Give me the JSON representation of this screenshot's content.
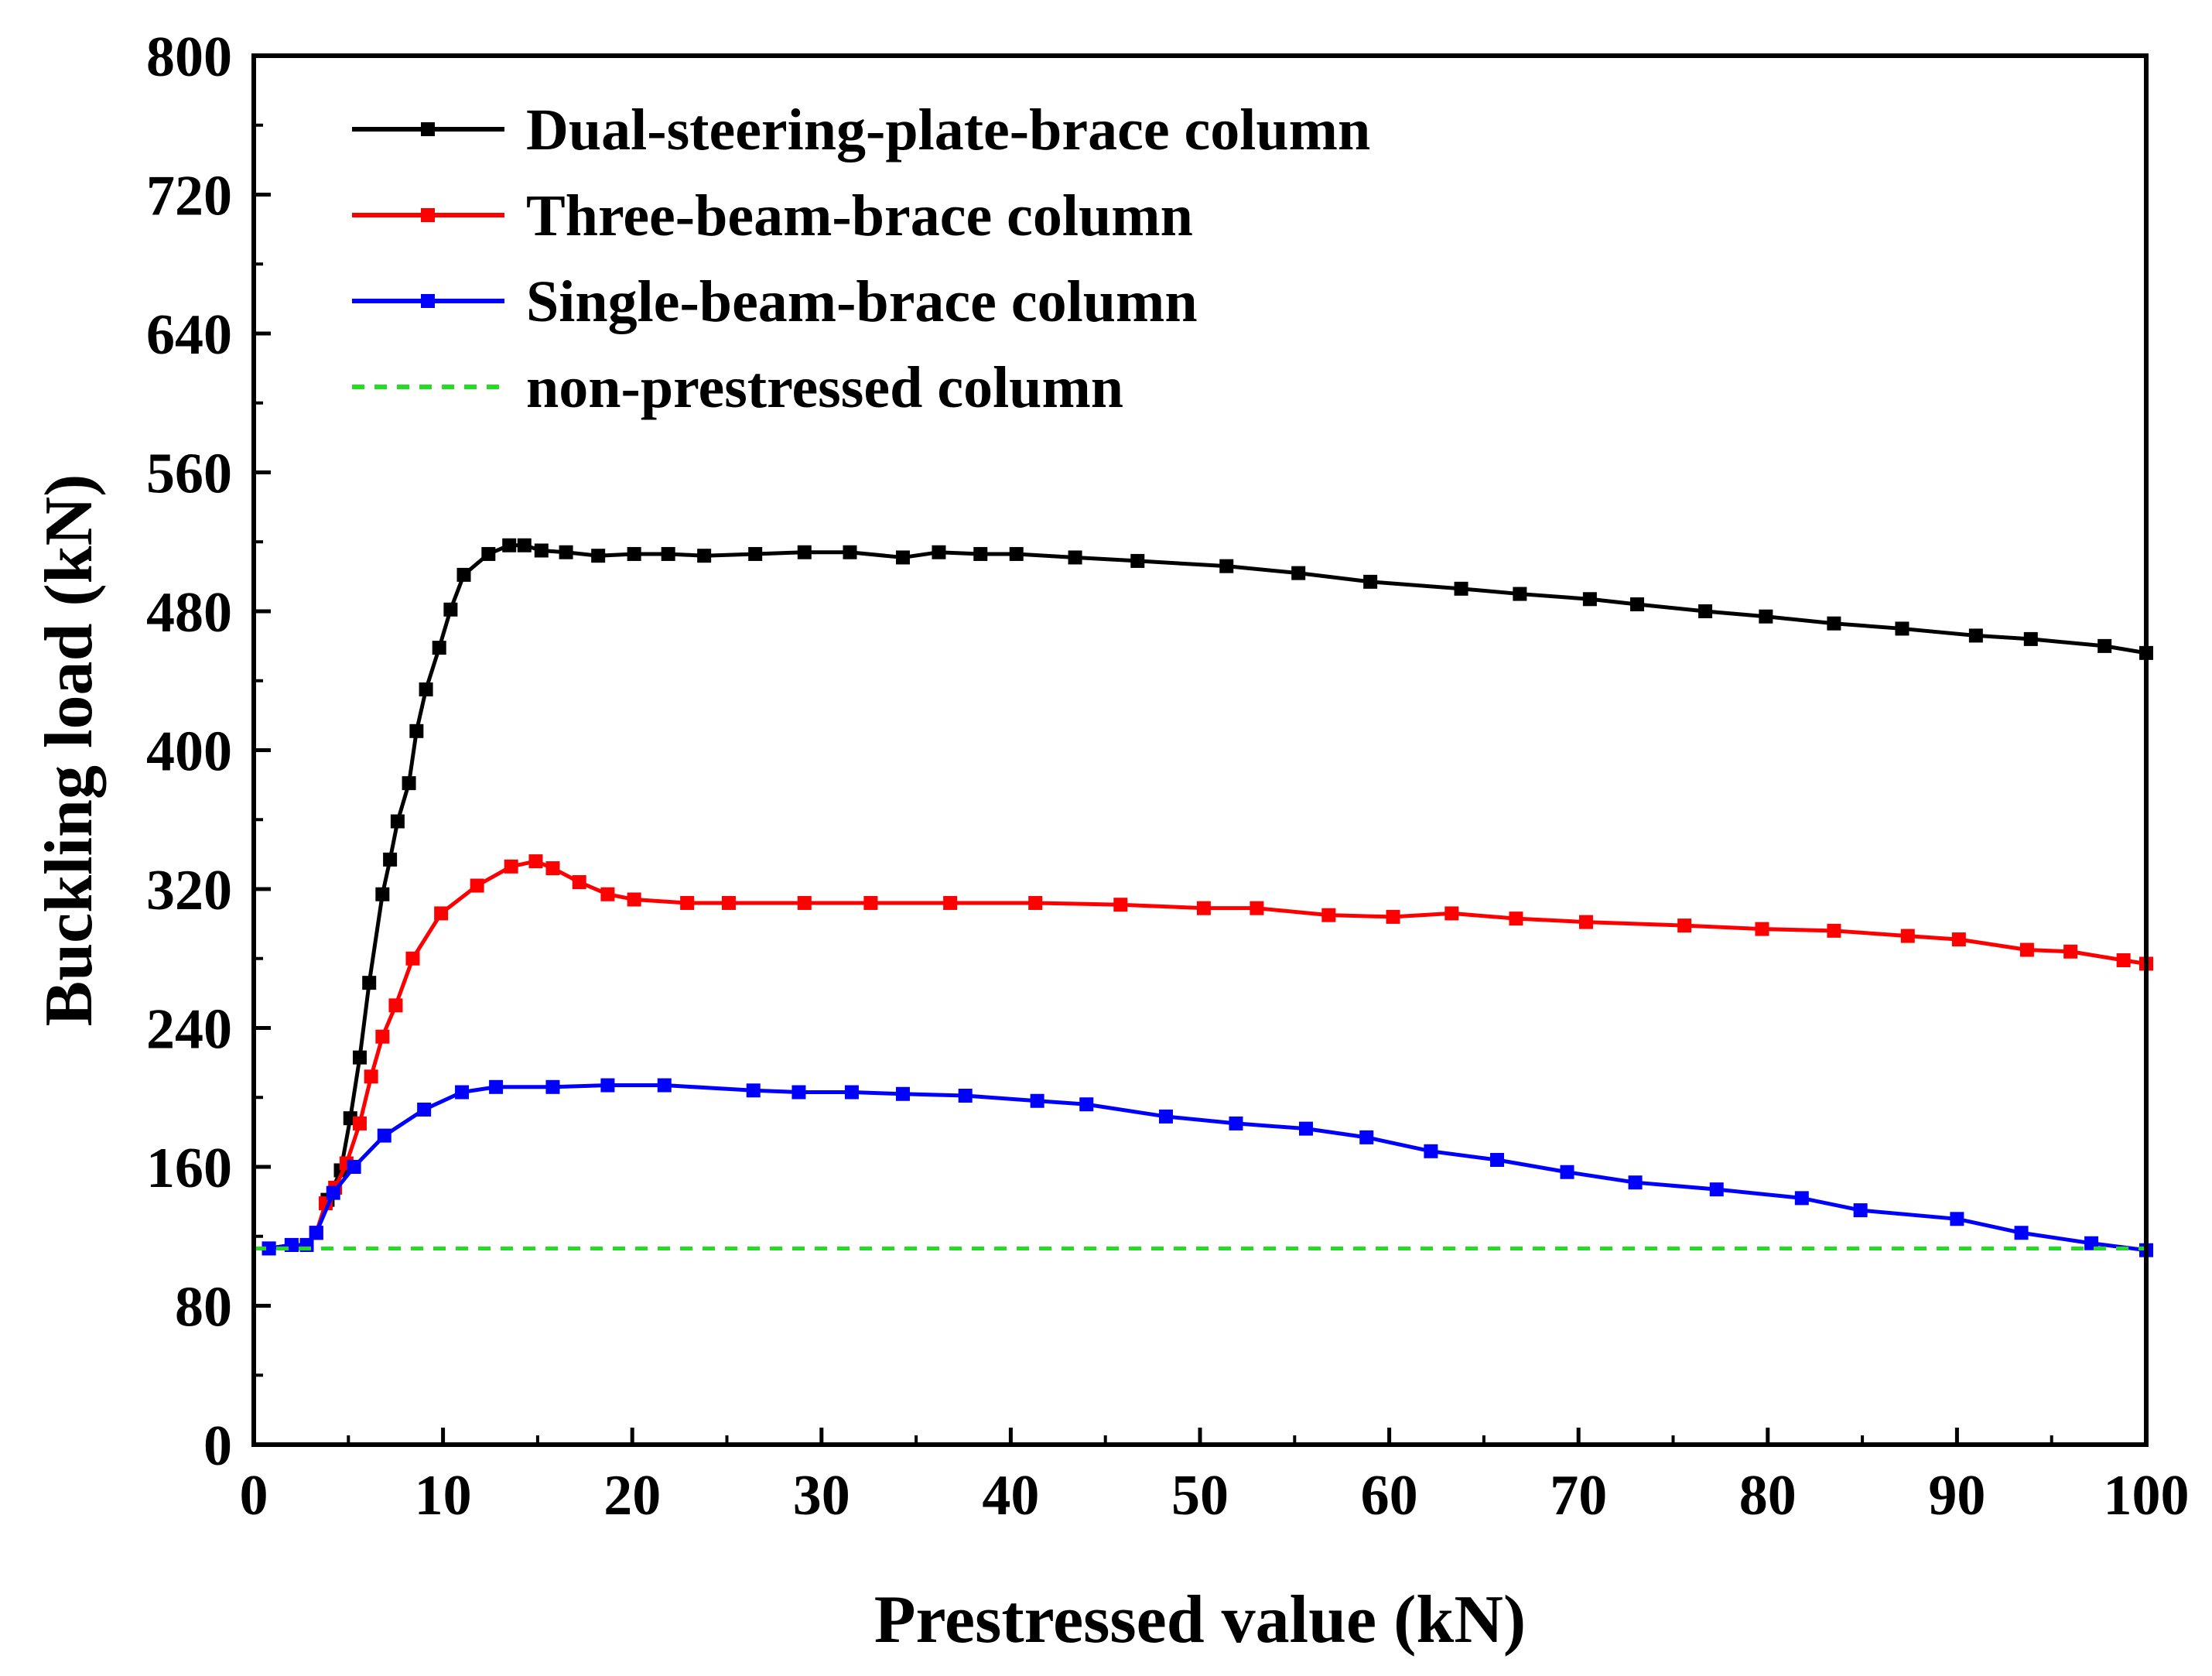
{
  "chart_data": {
    "type": "line",
    "title": "",
    "xlabel": "Prestressed value (kN)",
    "ylabel": "Buckling load (kN)",
    "xlim": [
      0,
      100
    ],
    "ylim": [
      0,
      800
    ],
    "xticks": [
      0,
      10,
      20,
      30,
      40,
      50,
      60,
      70,
      80,
      90,
      100
    ],
    "yticks": [
      0,
      80,
      160,
      240,
      320,
      400,
      480,
      560,
      640,
      720,
      800
    ],
    "xtick_labels": [
      "0",
      "10",
      "20",
      "30",
      "40",
      "50",
      "60",
      "70",
      "80",
      "90",
      "100"
    ],
    "ytick_labels": [
      "0",
      "80",
      "160",
      "240",
      "320",
      "400",
      "480",
      "560",
      "640",
      "720",
      "800"
    ],
    "grid": false,
    "legend_position": "top-left",
    "series": [
      {
        "name": "Dual-steering-plate-brace column",
        "color": "#000000",
        "marker": "square",
        "dashed": false,
        "x": [
          0.8,
          2,
          2.8,
          3.3,
          3.9,
          4.6,
          5.1,
          5.6,
          6.1,
          6.8,
          7.2,
          7.6,
          8.2,
          8.6,
          9.1,
          9.8,
          10.4,
          11.1,
          12.4,
          13.5,
          14.3,
          15.2,
          16.5,
          18.2,
          20.1,
          21.9,
          23.8,
          26.5,
          29.1,
          31.5,
          34.3,
          36.2,
          38.4,
          40.3,
          43.4,
          46.7,
          51.4,
          55.2,
          59.0,
          63.8,
          66.9,
          70.6,
          73.1,
          76.7,
          79.9,
          83.5,
          87.1,
          91.0,
          93.9,
          97.8,
          100
        ],
        "y": [
          113,
          115,
          115,
          122,
          141,
          158,
          188,
          223,
          266,
          317,
          337,
          359,
          381,
          411,
          435,
          459,
          481,
          501,
          513,
          518,
          518,
          515,
          514,
          512,
          513,
          513,
          512,
          513,
          514,
          514,
          511,
          514,
          513,
          513,
          511,
          509,
          506,
          502,
          497,
          493,
          490,
          487,
          484,
          480,
          477,
          473,
          470,
          466,
          464,
          460,
          456
        ]
      },
      {
        "name": "Three-beam-brace column",
        "color": "#ff0000",
        "marker": "square",
        "dashed": false,
        "x": [
          0.8,
          2,
          2.8,
          3.3,
          3.8,
          4.3,
          4.9,
          5.6,
          6.2,
          6.8,
          7.5,
          8.4,
          9.9,
          11.8,
          13.6,
          14.9,
          15.8,
          17.2,
          18.7,
          20.1,
          22.9,
          25.1,
          29.1,
          32.6,
          36.8,
          41.3,
          45.8,
          50.2,
          53.0,
          56.8,
          60.2,
          63.3,
          66.7,
          70.4,
          75.6,
          79.7,
          83.5,
          87.4,
          90.1,
          93.7,
          96.0,
          98.8,
          100
        ],
        "y": [
          113,
          115,
          115,
          122,
          139,
          148,
          162,
          185,
          212,
          235,
          253,
          280,
          306,
          322,
          333,
          336,
          332,
          324,
          317,
          314,
          312,
          312,
          312,
          312,
          312,
          312,
          311,
          309,
          309,
          305,
          304,
          306,
          303,
          301,
          299,
          297,
          296,
          293,
          291,
          285,
          284,
          279,
          277
        ]
      },
      {
        "name": "Single-beam-brace column",
        "color": "#0000ff",
        "marker": "square",
        "dashed": false,
        "x": [
          0.8,
          2,
          2.8,
          3.3,
          4.2,
          5.3,
          6.9,
          9.0,
          11.0,
          12.8,
          15.8,
          18.7,
          21.7,
          26.4,
          28.8,
          31.6,
          34.3,
          37.6,
          41.4,
          44.0,
          48.2,
          51.9,
          55.6,
          58.8,
          62.2,
          65.7,
          69.4,
          73.0,
          77.3,
          81.8,
          84.9,
          90.0,
          93.4,
          97.1,
          100
        ],
        "y": [
          113,
          115,
          115,
          122,
          145,
          160,
          178,
          193,
          203,
          206,
          206,
          207,
          207,
          204,
          203,
          203,
          202,
          201,
          198,
          196,
          189,
          185,
          182,
          177,
          169,
          164,
          157,
          151,
          147,
          142,
          135,
          130,
          122,
          116,
          112
        ]
      },
      {
        "name": "non-prestressed column",
        "color": "#22dd22",
        "marker": "none",
        "dashed": true,
        "x": [
          0,
          100
        ],
        "y": [
          113,
          113
        ]
      }
    ]
  }
}
